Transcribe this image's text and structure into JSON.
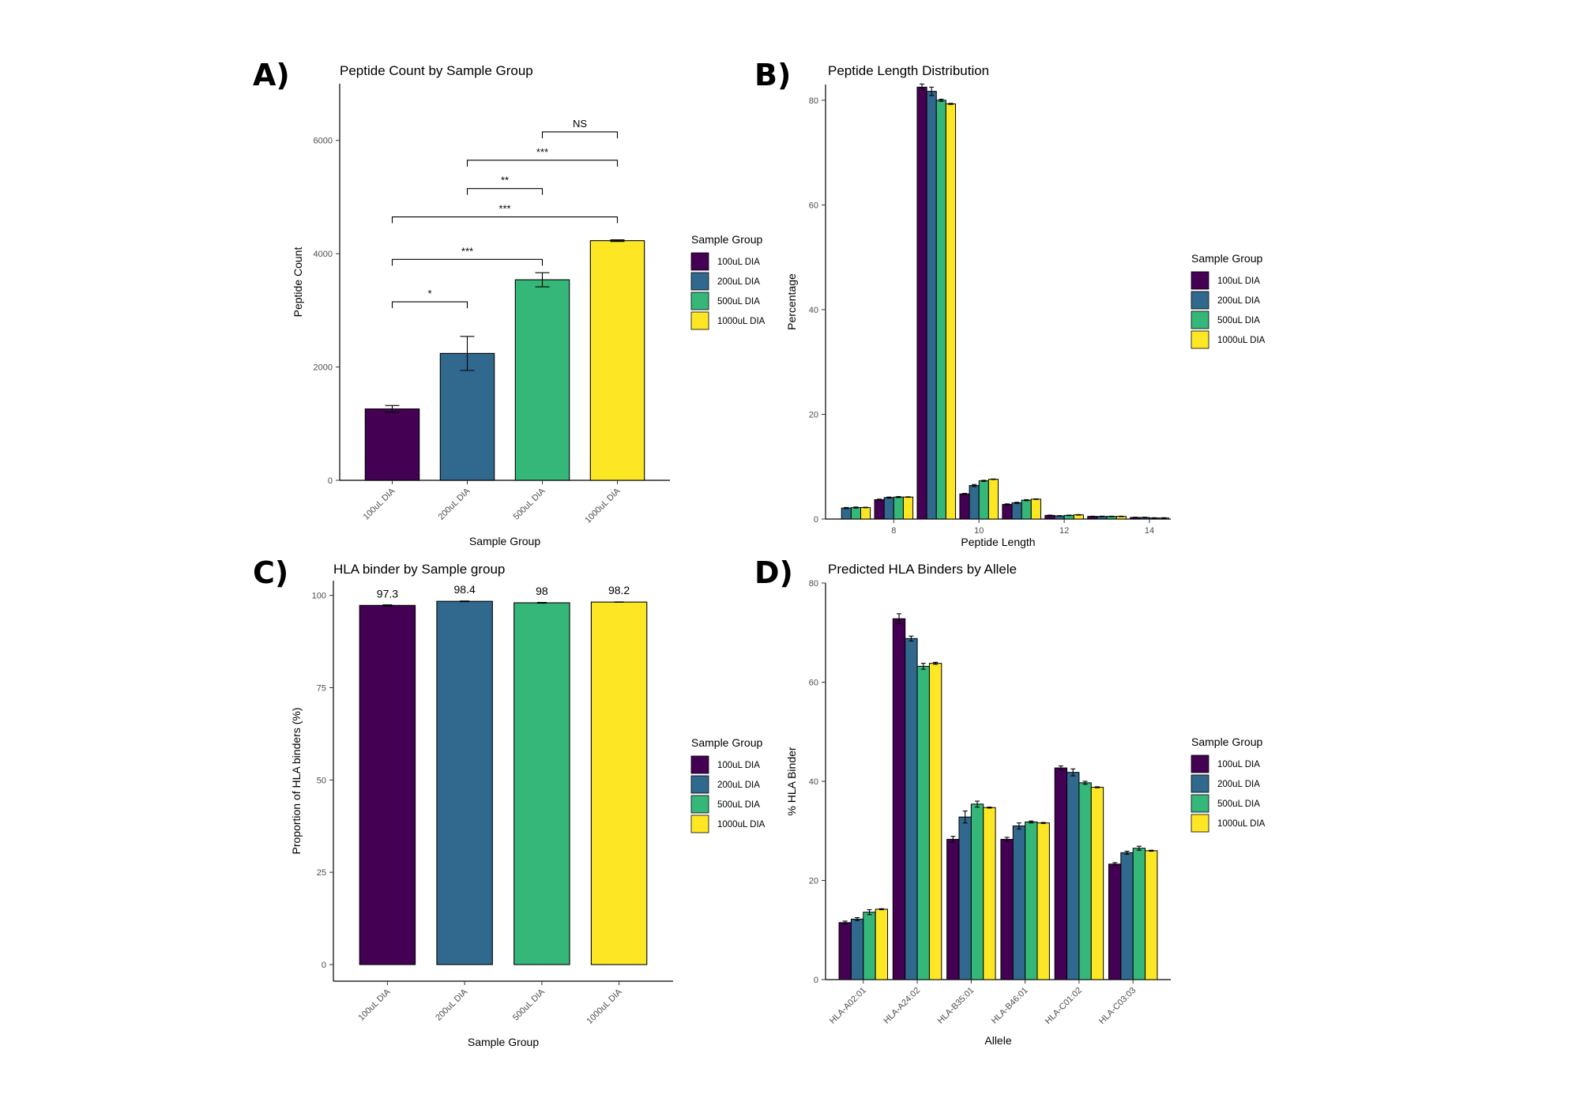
{
  "colors": {
    "100uL DIA": "#440154",
    "200uL DIA": "#31688e",
    "500uL DIA": "#35b779",
    "1000uL DIA": "#fde725"
  },
  "legend": {
    "title": "Sample Group",
    "items": [
      "100uL DIA",
      "200uL DIA",
      "500uL DIA",
      "1000uL DIA"
    ]
  },
  "chart_data": [
    {
      "id": "A",
      "panel_letter": "A)",
      "type": "bar",
      "title": "Peptide Count by Sample Group",
      "xlabel": "Sample Group",
      "ylabel": "Peptide Count",
      "categories": [
        "100uL DIA",
        "200uL DIA",
        "500uL DIA",
        "1000uL DIA"
      ],
      "values": [
        1260,
        2240,
        3540,
        4230
      ],
      "errors": [
        60,
        300,
        125,
        15
      ],
      "ylim": [
        0,
        7000
      ],
      "yticks": [
        0,
        2000,
        4000,
        6000
      ],
      "grid": false,
      "legend_position": "right",
      "significance": [
        {
          "from": 0,
          "to": 1,
          "label": "*",
          "y": 3150
        },
        {
          "from": 0,
          "to": 2,
          "label": "***",
          "y": 3900
        },
        {
          "from": 0,
          "to": 3,
          "label": "***",
          "y": 4650
        },
        {
          "from": 1,
          "to": 2,
          "label": "**",
          "y": 5150
        },
        {
          "from": 1,
          "to": 3,
          "label": "***",
          "y": 5650
        },
        {
          "from": 2,
          "to": 3,
          "label": "NS",
          "y": 6150
        }
      ]
    },
    {
      "id": "B",
      "panel_letter": "B)",
      "type": "bar",
      "title": "Peptide Length Distribution",
      "xlabel": "Peptide Length",
      "ylabel": "Percentage",
      "x": [
        7,
        8,
        9,
        10,
        11,
        12,
        13,
        14
      ],
      "xticks": [
        8,
        10,
        12,
        14
      ],
      "xlim": [
        6.4,
        14.5
      ],
      "ylim": [
        0,
        83
      ],
      "yticks": [
        0,
        20,
        40,
        60,
        80
      ],
      "grid": false,
      "legend_position": "right",
      "series": [
        {
          "name": "100uL DIA",
          "values": [
            0,
            3.7,
            82.5,
            4.8,
            2.8,
            0.7,
            0.5,
            0.3
          ],
          "errors": [
            0,
            0.1,
            0.6,
            0.1,
            0.1,
            0.05,
            0.05,
            0.05
          ]
        },
        {
          "name": "200uL DIA",
          "values": [
            2.1,
            4.1,
            81.7,
            6.4,
            3.1,
            0.6,
            0.5,
            0.3
          ],
          "errors": [
            0.1,
            0.1,
            0.8,
            0.2,
            0.1,
            0.05,
            0.05,
            0.05
          ]
        },
        {
          "name": "500uL DIA",
          "values": [
            2.2,
            4.2,
            80.0,
            7.3,
            3.6,
            0.7,
            0.5,
            0.2
          ],
          "errors": [
            0.1,
            0.1,
            0.2,
            0.1,
            0.1,
            0.05,
            0.05,
            0.05
          ]
        },
        {
          "name": "1000uL DIA",
          "values": [
            2.2,
            4.2,
            79.3,
            7.6,
            3.8,
            0.8,
            0.5,
            0.2
          ],
          "errors": [
            0.05,
            0.05,
            0.1,
            0.05,
            0.05,
            0.05,
            0.05,
            0.05
          ]
        }
      ]
    },
    {
      "id": "C",
      "panel_letter": "C)",
      "type": "bar",
      "title": "HLA binder by Sample group",
      "xlabel": "Sample Group",
      "ylabel": "Proportion of HLA binders (%)",
      "categories": [
        "100uL DIA",
        "200uL DIA",
        "500uL DIA",
        "1000uL DIA"
      ],
      "values": [
        97.3,
        98.4,
        98,
        98.2
      ],
      "data_labels": [
        "97.3",
        "98.4",
        "98",
        "98.2"
      ],
      "errors": [
        0.15,
        0.1,
        0.1,
        0.05
      ],
      "ylim": [
        -4.5,
        104
      ],
      "yticks": [
        0,
        25,
        50,
        75,
        100
      ],
      "grid": false,
      "legend_position": "right"
    },
    {
      "id": "D",
      "panel_letter": "D)",
      "type": "bar",
      "title": "Predicted HLA Binders by Allele",
      "xlabel": "Allele",
      "ylabel": "% HLA Binder",
      "categories": [
        "HLA-A02:01",
        "HLA-A24:02",
        "HLA-B35:01",
        "HLA-B46:01",
        "HLA-C01:02",
        "HLA-C03:03"
      ],
      "ylim": [
        0,
        80
      ],
      "yticks": [
        0,
        20,
        40,
        60,
        80
      ],
      "grid": false,
      "legend_position": "right",
      "series": [
        {
          "name": "100uL DIA",
          "values": [
            11.5,
            72.8,
            28.3,
            28.3,
            42.7,
            23.3
          ],
          "errors": [
            0.3,
            1.0,
            0.6,
            0.4,
            0.4,
            0.3
          ]
        },
        {
          "name": "200uL DIA",
          "values": [
            12.2,
            68.8,
            32.8,
            31.0,
            41.8,
            25.6
          ],
          "errors": [
            0.3,
            0.5,
            1.2,
            0.6,
            0.7,
            0.3
          ]
        },
        {
          "name": "500uL DIA",
          "values": [
            13.6,
            63.2,
            35.4,
            31.8,
            39.7,
            26.5
          ],
          "errors": [
            0.5,
            0.6,
            0.6,
            0.2,
            0.3,
            0.4
          ]
        },
        {
          "name": "1000uL DIA",
          "values": [
            14.2,
            63.8,
            34.7,
            31.6,
            38.8,
            26.0
          ],
          "errors": [
            0.1,
            0.2,
            0.1,
            0.1,
            0.1,
            0.1
          ]
        }
      ]
    }
  ]
}
